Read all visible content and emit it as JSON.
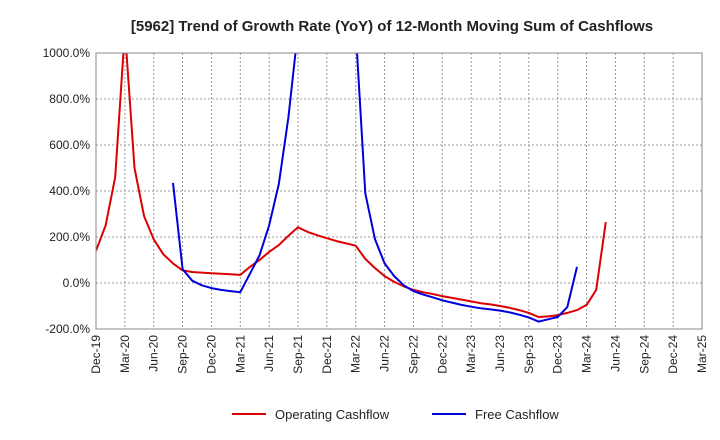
{
  "chart_data": {
    "type": "line",
    "title": "[5962]  Trend of Growth Rate (YoY) of 12-Month Moving Sum of Cashflows",
    "xlabel": "",
    "ylabel": "",
    "ylim": [
      -200,
      1000
    ],
    "y_ticks": [
      -200,
      0,
      200,
      400,
      600,
      800,
      1000
    ],
    "y_tick_labels": [
      "-200.0%",
      "0.0%",
      "200.0%",
      "400.0%",
      "600.0%",
      "800.0%",
      "1000.0%"
    ],
    "x_range": [
      "2019-12",
      "2025-03"
    ],
    "x_ticks": [
      "2019-12",
      "2020-03",
      "2020-06",
      "2020-09",
      "2020-12",
      "2021-03",
      "2021-06",
      "2021-09",
      "2021-12",
      "2022-03",
      "2022-06",
      "2022-09",
      "2022-12",
      "2023-03",
      "2023-06",
      "2023-09",
      "2023-12",
      "2024-03",
      "2024-06",
      "2024-09",
      "2024-12",
      "2025-03"
    ],
    "x_tick_labels": [
      "Dec-19",
      "Mar-20",
      "Jun-20",
      "Sep-20",
      "Dec-20",
      "Mar-21",
      "Jun-21",
      "Sep-21",
      "Dec-21",
      "Mar-22",
      "Jun-22",
      "Sep-22",
      "Dec-22",
      "Mar-23",
      "Jun-23",
      "Sep-23",
      "Dec-23",
      "Mar-24",
      "Jun-24",
      "Sep-24",
      "Dec-24",
      "Mar-25"
    ],
    "grid": true,
    "legend_position": "bottom-center",
    "series": [
      {
        "name": "Operating Cashflow",
        "color": "#dd0000",
        "points": [
          [
            "2019-12",
            140
          ],
          [
            "2020-01",
            250
          ],
          [
            "2020-02",
            460
          ],
          [
            "2020-03",
            1100
          ],
          [
            "2020-04",
            500
          ],
          [
            "2020-05",
            290
          ],
          [
            "2020-06",
            190
          ],
          [
            "2020-07",
            125
          ],
          [
            "2020-08",
            85
          ],
          [
            "2020-09",
            55
          ],
          [
            "2020-10",
            48
          ],
          [
            "2020-11",
            45
          ],
          [
            "2020-12",
            42
          ],
          [
            "2021-01",
            40
          ],
          [
            "2021-02",
            38
          ],
          [
            "2021-03",
            35
          ],
          [
            "2021-04",
            70
          ],
          [
            "2021-05",
            100
          ],
          [
            "2021-06",
            135
          ],
          [
            "2021-07",
            165
          ],
          [
            "2021-08",
            205
          ],
          [
            "2021-09",
            242
          ],
          [
            "2021-10",
            222
          ],
          [
            "2021-11",
            208
          ],
          [
            "2021-12",
            195
          ],
          [
            "2022-01",
            182
          ],
          [
            "2022-02",
            172
          ],
          [
            "2022-03",
            162
          ],
          [
            "2022-04",
            105
          ],
          [
            "2022-05",
            65
          ],
          [
            "2022-06",
            30
          ],
          [
            "2022-07",
            5
          ],
          [
            "2022-08",
            -15
          ],
          [
            "2022-09",
            -30
          ],
          [
            "2022-10",
            -40
          ],
          [
            "2022-11",
            -48
          ],
          [
            "2022-12",
            -57
          ],
          [
            "2023-01",
            -65
          ],
          [
            "2023-02",
            -72
          ],
          [
            "2023-03",
            -80
          ],
          [
            "2023-04",
            -88
          ],
          [
            "2023-05",
            -93
          ],
          [
            "2023-06",
            -100
          ],
          [
            "2023-07",
            -108
          ],
          [
            "2023-08",
            -118
          ],
          [
            "2023-09",
            -130
          ],
          [
            "2023-10",
            -148
          ],
          [
            "2023-11",
            -145
          ],
          [
            "2023-12",
            -140
          ],
          [
            "2024-01",
            -130
          ],
          [
            "2024-02",
            -118
          ],
          [
            "2024-03",
            -95
          ],
          [
            "2024-04",
            -30
          ],
          [
            "2024-05",
            265
          ]
        ]
      },
      {
        "name": "Free Cashflow",
        "color": "#0000dd",
        "points": [
          [
            "2020-08",
            435
          ],
          [
            "2020-09",
            60
          ],
          [
            "2020-10",
            10
          ],
          [
            "2020-11",
            -10
          ],
          [
            "2020-12",
            -22
          ],
          [
            "2021-01",
            -30
          ],
          [
            "2021-02",
            -35
          ],
          [
            "2021-03",
            -40
          ],
          [
            "2021-04",
            40
          ],
          [
            "2021-05",
            120
          ],
          [
            "2021-06",
            250
          ],
          [
            "2021-07",
            430
          ],
          [
            "2021-08",
            720
          ],
          [
            "2021-09",
            1100
          ],
          [
            "2022-03",
            1100
          ],
          [
            "2022-04",
            390
          ],
          [
            "2022-05",
            190
          ],
          [
            "2022-06",
            85
          ],
          [
            "2022-07",
            30
          ],
          [
            "2022-08",
            -10
          ],
          [
            "2022-09",
            -35
          ],
          [
            "2022-10",
            -50
          ],
          [
            "2022-11",
            -62
          ],
          [
            "2022-12",
            -75
          ],
          [
            "2023-01",
            -85
          ],
          [
            "2023-02",
            -95
          ],
          [
            "2023-03",
            -103
          ],
          [
            "2023-04",
            -110
          ],
          [
            "2023-05",
            -115
          ],
          [
            "2023-06",
            -120
          ],
          [
            "2023-07",
            -128
          ],
          [
            "2023-08",
            -138
          ],
          [
            "2023-09",
            -150
          ],
          [
            "2023-10",
            -168
          ],
          [
            "2023-11",
            -158
          ],
          [
            "2023-12",
            -148
          ],
          [
            "2024-01",
            -105
          ],
          [
            "2024-02",
            70
          ]
        ]
      }
    ]
  }
}
